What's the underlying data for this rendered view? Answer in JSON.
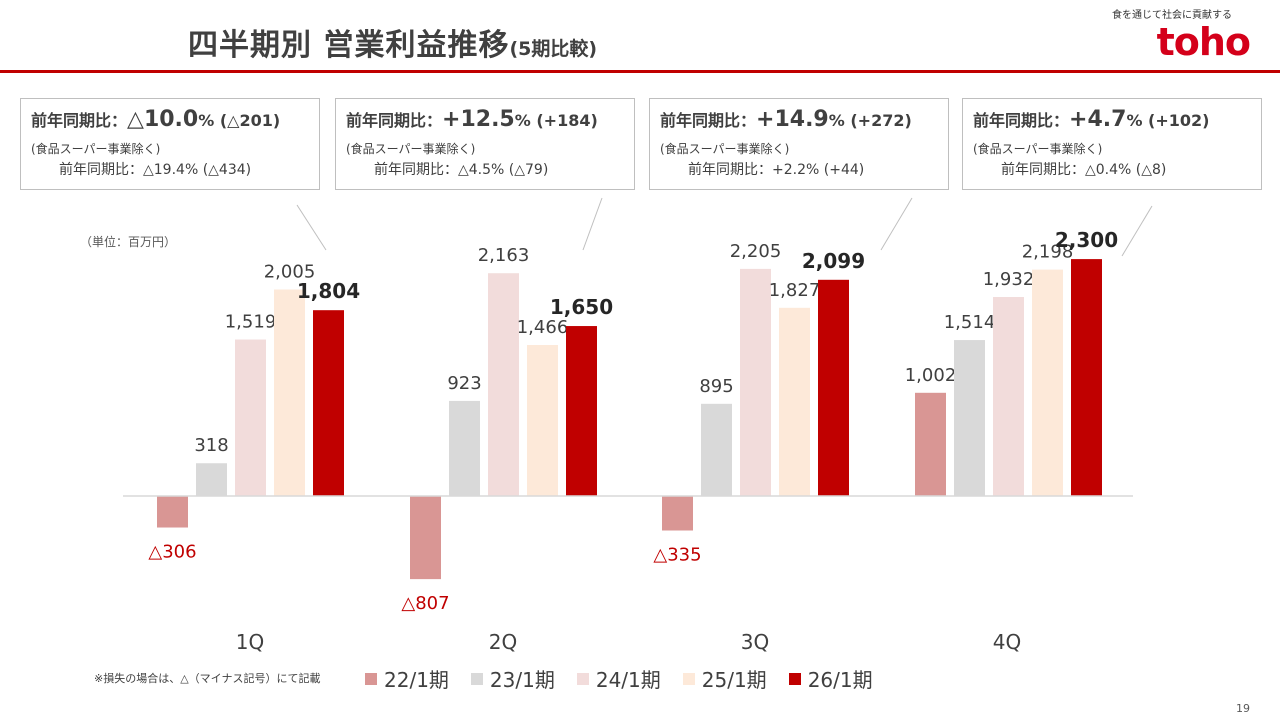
{
  "header": {
    "title": "四半期別 営業利益推移",
    "title_sub": "(5期比較)",
    "tagline": "食を通じて社会に貢献する",
    "logo": "toho"
  },
  "boxes": [
    {
      "prefix": "前年同期比：",
      "pct_sign": "△",
      "pct": "10.0",
      "pct_unit": "%",
      "diff": "(△201)",
      "note": "(食品スーパー事業除く)",
      "sub": "前年同期比：△19.4% (△434)"
    },
    {
      "prefix": "前年同期比：",
      "pct_sign": "+",
      "pct": "12.5",
      "pct_unit": "%",
      "diff": "(+184)",
      "note": "(食品スーパー事業除く)",
      "sub": "前年同期比：△4.5% (△79)"
    },
    {
      "prefix": "前年同期比：",
      "pct_sign": "+",
      "pct": "14.9",
      "pct_unit": "%",
      "diff": "(+272)",
      "note": "(食品スーパー事業除く)",
      "sub": "前年同期比：+2.2% (+44)"
    },
    {
      "prefix": "前年同期比：",
      "pct_sign": "+",
      "pct": "4.7",
      "pct_unit": "%",
      "diff": "(+102)",
      "note": "(食品スーパー事業除く)",
      "sub": "前年同期比：△0.4% (△8)"
    }
  ],
  "unit_label": "（単位：百万円）",
  "footnote": "※損失の場合は、△（マイナス記号）にて記載",
  "page_number": "19",
  "colors": {
    "accent": "#c00000",
    "series": [
      "#d99694",
      "#d9d9d9",
      "#f2dcdb",
      "#fde9d9",
      "#c00000"
    ],
    "negative_label": "#c00000"
  },
  "chart_data": {
    "type": "bar",
    "categories": [
      "1Q",
      "2Q",
      "3Q",
      "4Q"
    ],
    "series": [
      {
        "name": "22/1期",
        "values": [
          -306,
          -807,
          -335,
          1002
        ],
        "labels": [
          "△306",
          "△807",
          "△335",
          "1,002"
        ]
      },
      {
        "name": "23/1期",
        "values": [
          318,
          923,
          895,
          1514
        ],
        "labels": [
          "318",
          "923",
          "895",
          "1,514"
        ]
      },
      {
        "name": "24/1期",
        "values": [
          1519,
          2163,
          2205,
          1932
        ],
        "labels": [
          "1,519",
          "2,163",
          "2,205",
          "1,932"
        ]
      },
      {
        "name": "25/1期",
        "values": [
          2005,
          1466,
          1827,
          2198
        ],
        "labels": [
          "2,005",
          "1,466",
          "1,827",
          "2,198"
        ]
      },
      {
        "name": "26/1期",
        "values": [
          1804,
          1650,
          2099,
          2300
        ],
        "labels": [
          "1,804",
          "1,650",
          "2,099",
          "2,300"
        ]
      }
    ],
    "ylim": [
      -900,
      2400
    ],
    "grid": false,
    "legend": "bottom"
  }
}
